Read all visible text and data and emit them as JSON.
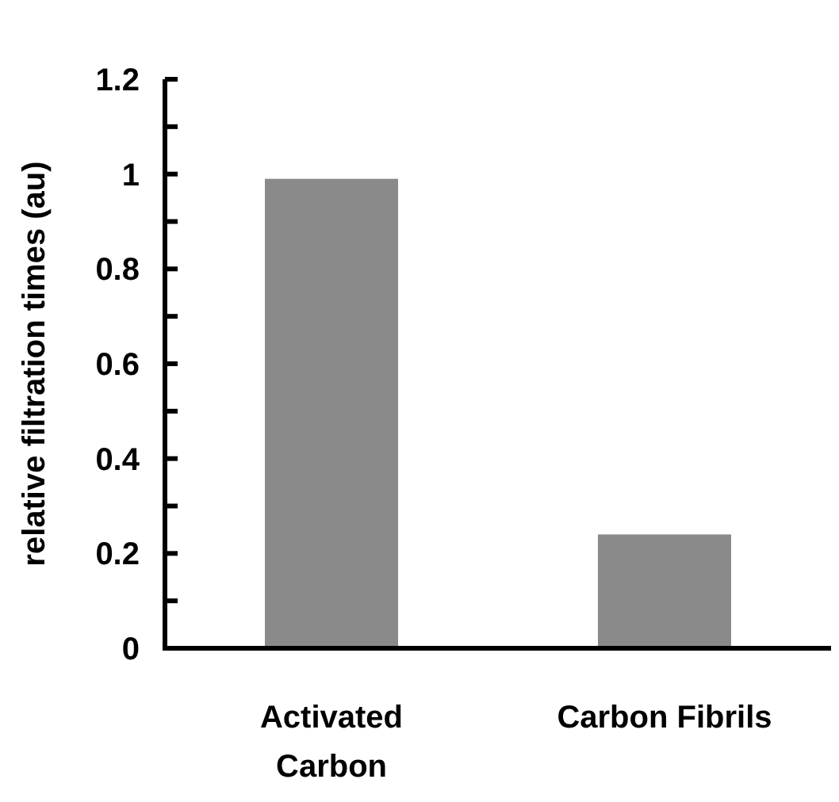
{
  "chart_data": {
    "type": "bar",
    "ylabel": "relative filtration times (au)",
    "categories": [
      "Activated Carbon",
      "Carbon Fibrils"
    ],
    "values": [
      0.99,
      0.24
    ],
    "color": "#8a8a8a",
    "ylim": [
      0,
      1.2
    ],
    "yticks": [
      0,
      {
        "value": 0.1,
        "label": null
      },
      0.2,
      {
        "value": 0.3,
        "label": null
      },
      0.4,
      {
        "value": 0.5,
        "label": null
      },
      0.6,
      {
        "value": 0.7,
        "label": null
      },
      0.8,
      {
        "value": 0.9,
        "label": null
      },
      1,
      {
        "value": 1.1,
        "label": null
      },
      1.2
    ],
    "grid": false
  }
}
